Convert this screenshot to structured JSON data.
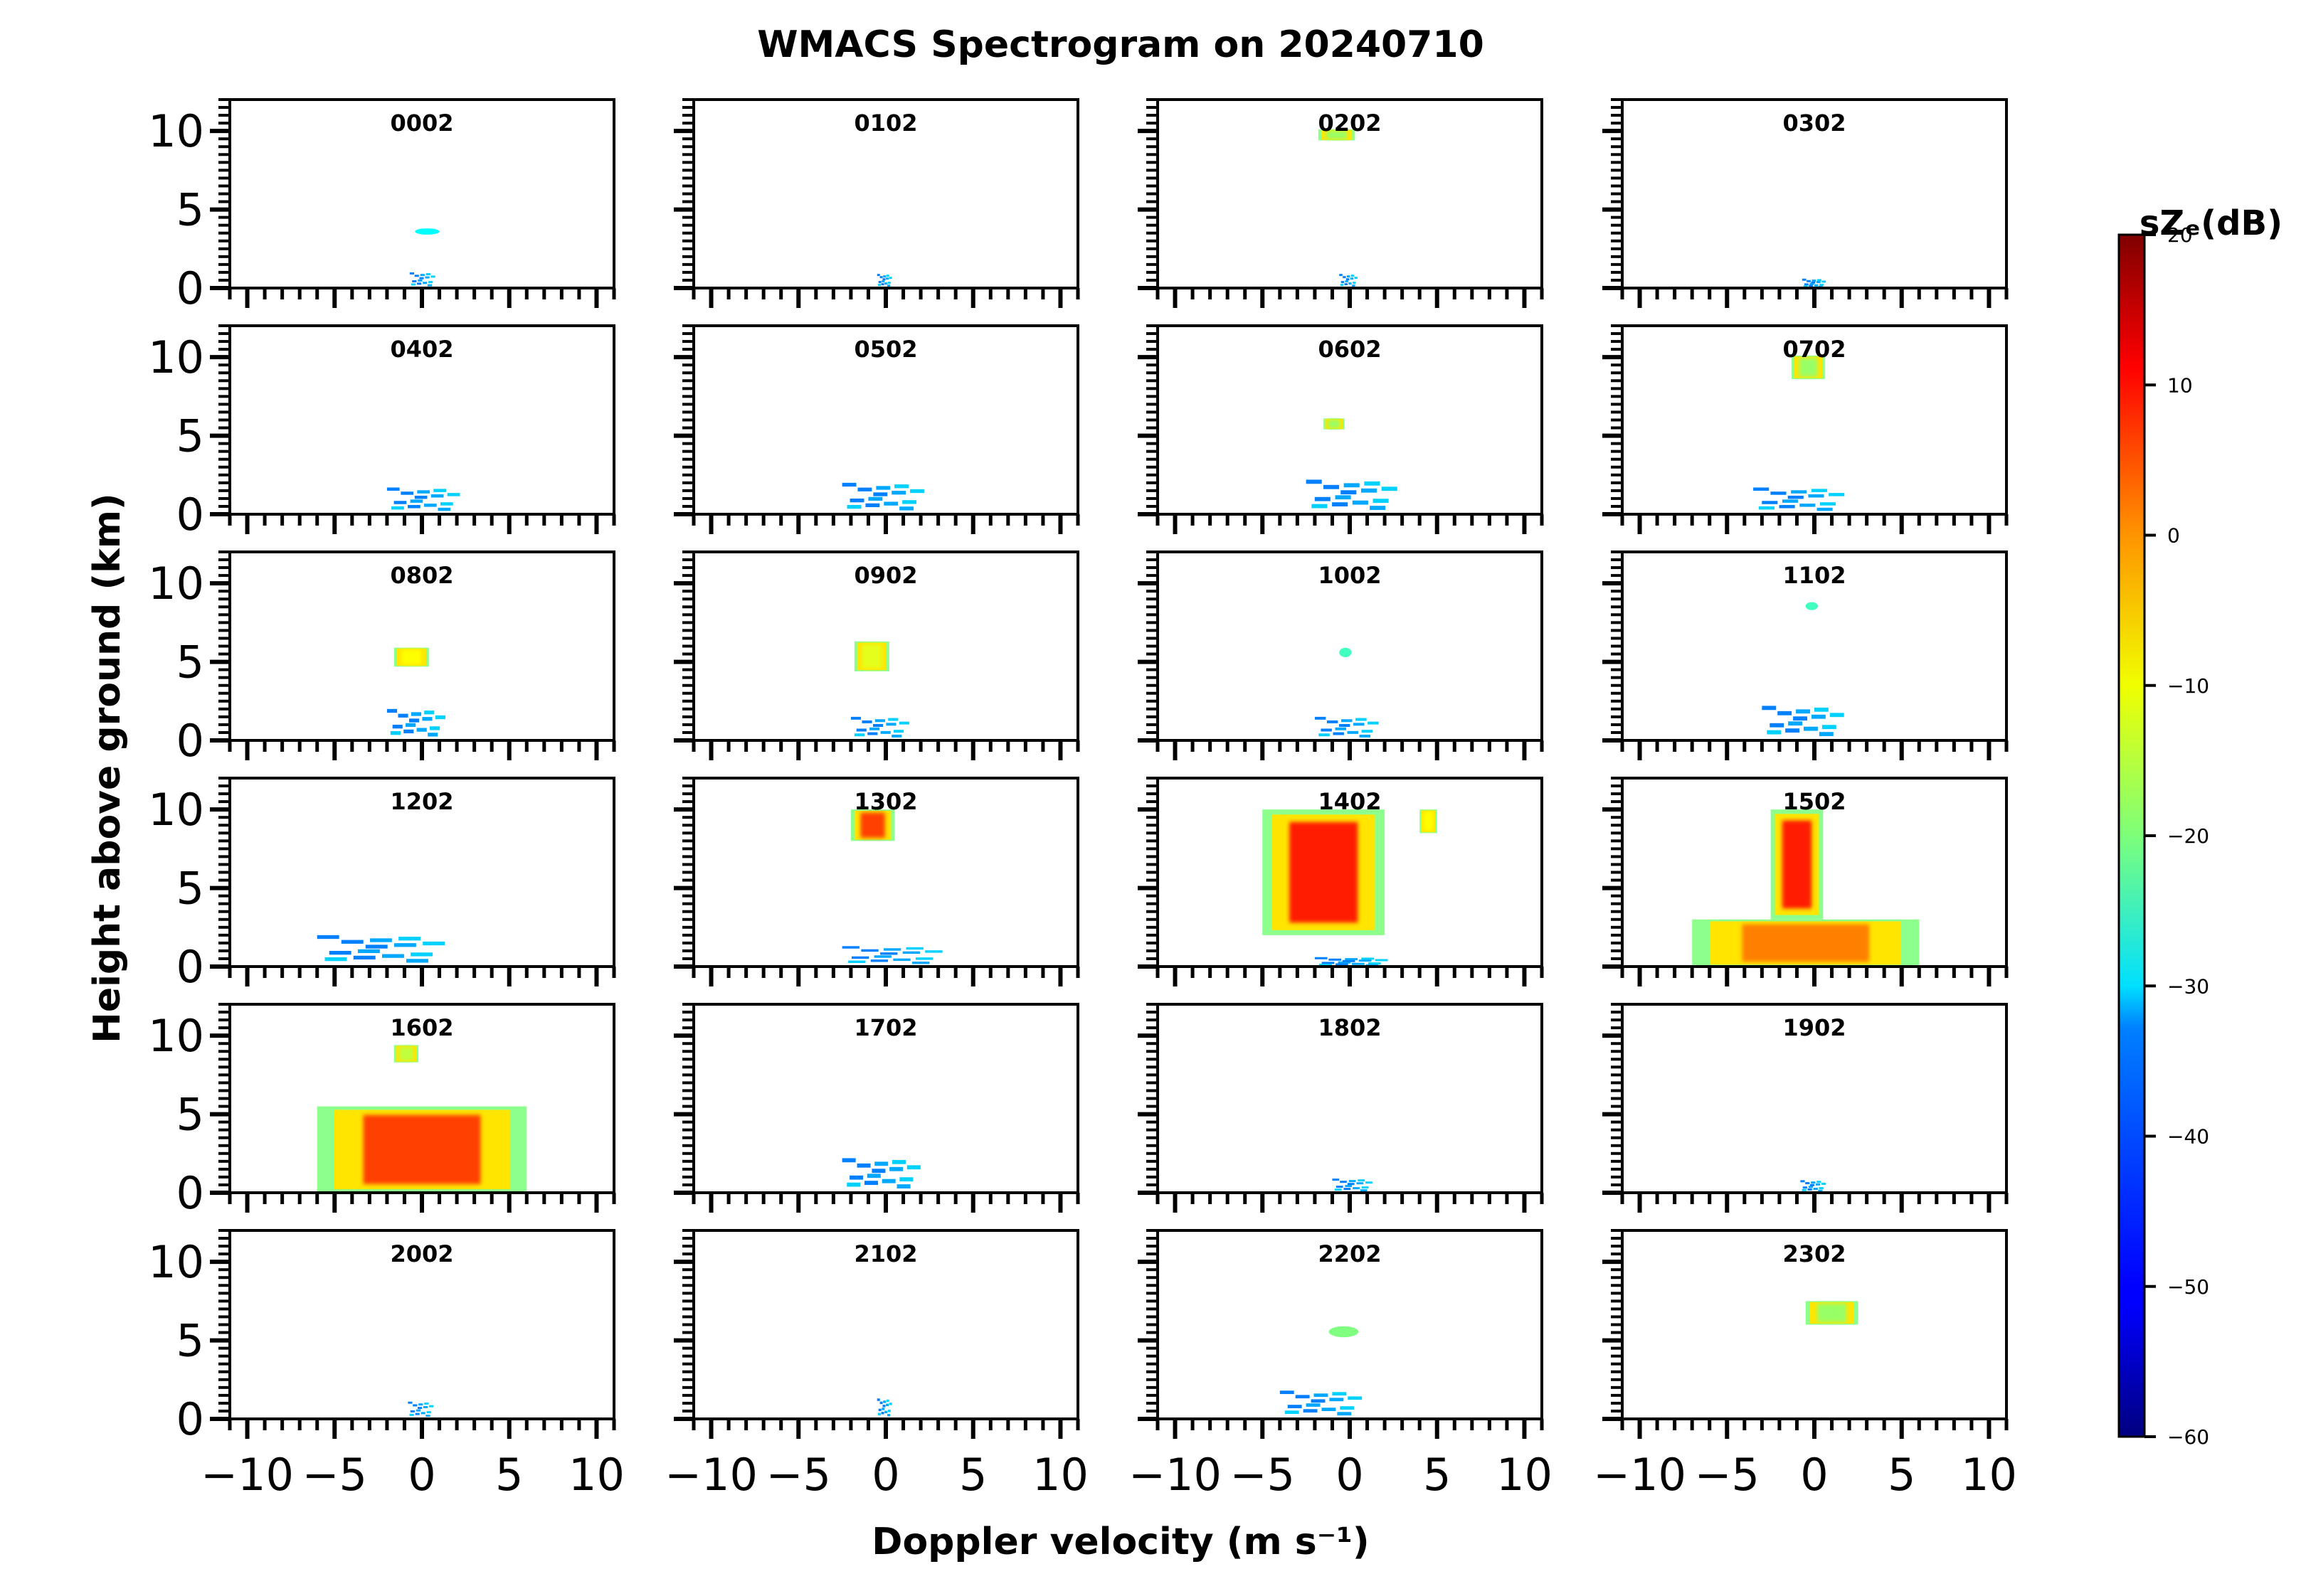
{
  "chart_data": {
    "type": "heatmap",
    "title": "WMACS Spectrogram on 20240710",
    "xlabel": "Doppler velocity (m s⁻¹)",
    "ylabel": "Height above ground (km)",
    "xlim": [
      -11,
      11
    ],
    "ylim": [
      0,
      12
    ],
    "xticks": [
      -10,
      -5,
      0,
      5,
      10
    ],
    "yticks": [
      0,
      5,
      10
    ],
    "x_tick_labels": [
      "−10",
      "−5",
      "0",
      "5",
      "10"
    ],
    "y_tick_labels": [
      "0",
      "5",
      "10"
    ],
    "grid": false,
    "layout": "6 rows × 4 columns of panels, shared axes",
    "colorbar": {
      "label": "sZₑ(dB)",
      "range": [
        -60,
        20
      ],
      "ticks": [
        20,
        10,
        0,
        -10,
        -20,
        -30,
        -40,
        -50,
        -60
      ],
      "tick_labels": [
        "20",
        "10",
        "0",
        "−10",
        "−20",
        "−30",
        "−40",
        "−50",
        "−60"
      ],
      "colormap": "jet"
    },
    "panels": [
      {
        "time": "0002",
        "echoes": [
          {
            "v": [
              -0.4,
              1.0
            ],
            "h": [
              3.4,
              3.8
            ],
            "dbz": -30
          },
          {
            "v": [
              -0.7,
              0.7
            ],
            "h": [
              0.0,
              1.0
            ],
            "dbz": -40
          }
        ]
      },
      {
        "time": "0102",
        "echoes": [
          {
            "v": [
              -0.5,
              0.3
            ],
            "h": [
              0.0,
              0.9
            ],
            "dbz": -40
          }
        ]
      },
      {
        "time": "0202",
        "echoes": [
          {
            "v": [
              -1.8,
              0.3
            ],
            "h": [
              9.4,
              10.1
            ],
            "dbz": -18
          },
          {
            "v": [
              -0.6,
              0.4
            ],
            "h": [
              0.0,
              0.9
            ],
            "dbz": -40
          }
        ]
      },
      {
        "time": "0302",
        "echoes": [
          {
            "v": [
              -0.7,
              0.6
            ],
            "h": [
              0.0,
              0.6
            ],
            "dbz": -40
          }
        ]
      },
      {
        "time": "0402",
        "echoes": [
          {
            "v": [
              -2.0,
              2.0
            ],
            "h": [
              0.0,
              1.7
            ],
            "dbz": -40
          }
        ]
      },
      {
        "time": "0502",
        "echoes": [
          {
            "v": [
              -2.5,
              2.0
            ],
            "h": [
              0.0,
              2.0
            ],
            "dbz": -40
          }
        ]
      },
      {
        "time": "0602",
        "echoes": [
          {
            "v": [
              -1.5,
              -0.3
            ],
            "h": [
              5.4,
              6.1
            ],
            "dbz": -18
          },
          {
            "v": [
              -2.5,
              2.5
            ],
            "h": [
              0.0,
              2.2
            ],
            "dbz": -40
          }
        ]
      },
      {
        "time": "0702",
        "echoes": [
          {
            "v": [
              -1.3,
              0.6
            ],
            "h": [
              8.6,
              10.1
            ],
            "dbz": -18
          },
          {
            "v": [
              -3.5,
              1.5
            ],
            "h": [
              0.0,
              1.7
            ],
            "dbz": -40
          }
        ]
      },
      {
        "time": "0802",
        "echoes": [
          {
            "v": [
              -1.6,
              0.4
            ],
            "h": [
              4.7,
              5.9
            ],
            "dbz": -10
          },
          {
            "v": [
              -2.0,
              1.2
            ],
            "h": [
              0.0,
              2.0
            ],
            "dbz": -40
          }
        ]
      },
      {
        "time": "0902",
        "echoes": [
          {
            "v": [
              -1.8,
              0.2
            ],
            "h": [
              4.4,
              6.3
            ],
            "dbz": -12
          },
          {
            "v": [
              -2.0,
              1.2
            ],
            "h": [
              0.0,
              1.5
            ],
            "dbz": -40
          }
        ]
      },
      {
        "time": "1002",
        "echoes": [
          {
            "v": [
              -0.6,
              0.1
            ],
            "h": [
              5.3,
              5.9
            ],
            "dbz": -25
          },
          {
            "v": [
              -2.0,
              1.5
            ],
            "h": [
              0.0,
              1.5
            ],
            "dbz": -40
          }
        ]
      },
      {
        "time": "1102",
        "echoes": [
          {
            "v": [
              -0.5,
              0.2
            ],
            "h": [
              8.3,
              8.8
            ],
            "dbz": -25
          },
          {
            "v": [
              -3.0,
              1.5
            ],
            "h": [
              0.0,
              2.2
            ],
            "dbz": -40
          }
        ]
      },
      {
        "time": "1202",
        "echoes": [
          {
            "v": [
              -6.0,
              1.0
            ],
            "h": [
              0.0,
              2.0
            ],
            "dbz": -40
          }
        ]
      },
      {
        "time": "1302",
        "echoes": [
          {
            "v": [
              -2.0,
              0.5
            ],
            "h": [
              8.0,
              10.0
            ],
            "dbz": 5
          },
          {
            "v": [
              -2.5,
              3.0
            ],
            "h": [
              0.0,
              1.3
            ],
            "dbz": -40
          }
        ]
      },
      {
        "time": "1402",
        "echoes": [
          {
            "v": [
              -5.0,
              2.0
            ],
            "h": [
              2.0,
              10.0
            ],
            "dbz": 8
          },
          {
            "v": [
              4.0,
              5.0
            ],
            "h": [
              8.5,
              10.0
            ],
            "dbz": -10
          },
          {
            "v": [
              -2.0,
              2.0
            ],
            "h": [
              0.0,
              0.6
            ],
            "dbz": -40
          }
        ]
      },
      {
        "time": "1502",
        "echoes": [
          {
            "v": [
              -2.5,
              0.5
            ],
            "h": [
              3.0,
              10.0
            ],
            "dbz": 8
          },
          {
            "v": [
              -7.0,
              6.0
            ],
            "h": [
              0.0,
              3.0
            ],
            "dbz": 0
          }
        ]
      },
      {
        "time": "1602",
        "echoes": [
          {
            "v": [
              -1.6,
              -0.2
            ],
            "h": [
              8.3,
              9.4
            ],
            "dbz": -15
          },
          {
            "v": [
              -6.0,
              6.0
            ],
            "h": [
              0.0,
              5.5
            ],
            "dbz": 5
          }
        ]
      },
      {
        "time": "1702",
        "echoes": [
          {
            "v": [
              -2.5,
              1.8
            ],
            "h": [
              0.0,
              2.2
            ],
            "dbz": -40
          }
        ]
      },
      {
        "time": "1802",
        "echoes": [
          {
            "v": [
              -1.0,
              1.2
            ],
            "h": [
              0.0,
              0.9
            ],
            "dbz": -40
          }
        ]
      },
      {
        "time": "1902",
        "echoes": [
          {
            "v": [
              -0.8,
              0.6
            ],
            "h": [
              0.0,
              0.8
            ],
            "dbz": -40
          }
        ]
      },
      {
        "time": "2002",
        "echoes": [
          {
            "v": [
              -0.8,
              0.6
            ],
            "h": [
              0.0,
              1.1
            ],
            "dbz": -40
          }
        ]
      },
      {
        "time": "2102",
        "echoes": [
          {
            "v": [
              -0.5,
              0.3
            ],
            "h": [
              0.0,
              1.3
            ],
            "dbz": -40
          }
        ]
      },
      {
        "time": "2202",
        "echoes": [
          {
            "v": [
              -1.2,
              0.5
            ],
            "h": [
              5.2,
              5.9
            ],
            "dbz": -20
          },
          {
            "v": [
              -4.0,
              0.5
            ],
            "h": [
              0.0,
              1.8
            ],
            "dbz": -40
          }
        ]
      },
      {
        "time": "2302",
        "echoes": [
          {
            "v": [
              -0.5,
              2.5
            ],
            "h": [
              6.0,
              7.5
            ],
            "dbz": -18
          }
        ]
      }
    ]
  }
}
